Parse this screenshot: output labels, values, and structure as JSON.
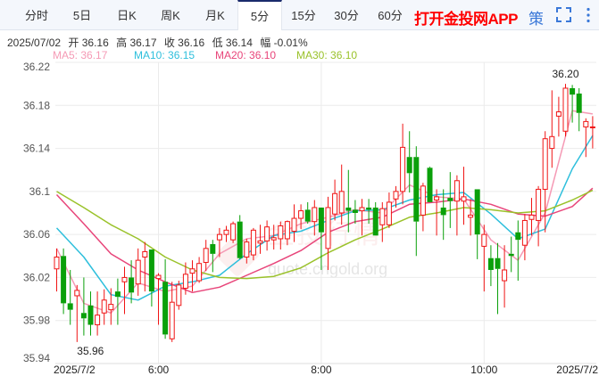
{
  "tabs": [
    {
      "label": "分时",
      "active": false
    },
    {
      "label": "5日",
      "active": false
    },
    {
      "label": "日K",
      "active": false
    },
    {
      "label": "周K",
      "active": false
    },
    {
      "label": "月K",
      "active": false
    },
    {
      "label": "5分",
      "active": true
    },
    {
      "label": "15分",
      "active": false
    },
    {
      "label": "30分",
      "active": false
    },
    {
      "label": "60分",
      "active": false
    }
  ],
  "app_link": "打开金投网APP",
  "strategy_label": "策",
  "icons": {
    "fullscreen": "fullscreen-icon",
    "more": "more-vertical-icon"
  },
  "info": {
    "date": "2025/07/02",
    "open": "开 36.16",
    "high": "高 36.17",
    "close": "收 36.16",
    "low": "低 36.14",
    "change": "幅 -0.01%"
  },
  "ma_legend": [
    {
      "label": "MA5: 36.17",
      "color": "#f59ab5"
    },
    {
      "label": "MA10: 36.15",
      "color": "#2ebfdc"
    },
    {
      "label": "MA20: 36.10",
      "color": "#e8457a"
    },
    {
      "label": "MA30: 36.10",
      "color": "#9ac22a"
    }
  ],
  "watermark": {
    "brand": "金投行情",
    "url": "quote.cngold.org"
  },
  "colors": {
    "up": "#f01414",
    "down": "#0aa00a",
    "grid": "#ebebeb"
  },
  "chart_data": {
    "type": "candlestick",
    "interval": "5分",
    "ylim": [
      35.94,
      36.22
    ],
    "yticks": [
      "36.22",
      "36.18",
      "36.14",
      "36.1",
      "36.06",
      "36.02",
      "35.98",
      "35.94"
    ],
    "xticks": [
      {
        "time": "04:45",
        "label": "2025/7/2"
      },
      {
        "time": "06:00",
        "label": "6:00"
      },
      {
        "time": "08:00",
        "label": "8:00"
      },
      {
        "time": "10:00",
        "label": "10:00"
      },
      {
        "time": "11:20",
        "label": "2025/7/2"
      }
    ],
    "grid": true,
    "annotations": [
      {
        "time": "11:00",
        "value": 36.2,
        "label": "36.20",
        "kind": "high"
      },
      {
        "time": "05:00",
        "value": 35.96,
        "label": "35.96",
        "kind": "low"
      }
    ],
    "candle_fields": [
      "time",
      "open",
      "close",
      "high",
      "low"
    ],
    "candles": [
      [
        "04:45",
        36.028,
        36.039,
        36.047,
        36.007
      ],
      [
        "04:50",
        36.04,
        35.996,
        36.047,
        35.986
      ],
      [
        "04:55",
        35.996,
        35.99,
        36.027,
        35.976
      ],
      [
        "05:00",
        36.003,
        36.008,
        36.013,
        35.96
      ],
      [
        "05:05",
        35.987,
        35.982,
        36.02,
        35.966
      ],
      [
        "05:10",
        35.994,
        35.976,
        36.007,
        35.966
      ],
      [
        "05:15",
        35.976,
        35.985,
        36.007,
        35.966
      ],
      [
        "05:20",
        35.987,
        35.999,
        36.009,
        35.976
      ],
      [
        "05:25",
        35.99,
        35.995,
        36.01,
        35.976
      ],
      [
        "05:30",
        36.007,
        36.002,
        36.019,
        35.976
      ],
      [
        "05:35",
        36.016,
        36.02,
        36.03,
        35.986
      ],
      [
        "05:40",
        36.02,
        36.006,
        36.036,
        35.996
      ],
      [
        "05:45",
        36.014,
        36.036,
        36.047,
        36.003
      ],
      [
        "05:50",
        36.039,
        36.044,
        36.053,
        36.007
      ],
      [
        "05:55",
        36.046,
        36.007,
        36.046,
        35.993
      ],
      [
        "06:00",
        36.019,
        36.022,
        36.024,
        35.976
      ],
      [
        "06:05",
        36.016,
        35.967,
        36.037,
        35.963
      ],
      [
        "06:10",
        35.963,
        35.997,
        36.016,
        35.96
      ],
      [
        "06:15",
        35.994,
        36.013,
        36.017,
        35.99
      ],
      [
        "06:20",
        36.01,
        36.023,
        36.034,
        36.004
      ],
      [
        "06:25",
        36.024,
        36.028,
        36.036,
        36.007
      ],
      [
        "06:30",
        36.017,
        36.033,
        36.039,
        36.015
      ],
      [
        "06:35",
        36.034,
        36.047,
        36.055,
        36.026
      ],
      [
        "06:40",
        36.051,
        36.042,
        36.055,
        36.025
      ],
      [
        "06:45",
        36.055,
        36.06,
        36.066,
        36.039
      ],
      [
        "06:50",
        36.06,
        36.064,
        36.068,
        36.053
      ],
      [
        "06:55",
        36.055,
        36.07,
        36.072,
        36.052
      ],
      [
        "07:00",
        36.072,
        36.038,
        36.078,
        36.037
      ],
      [
        "07:05",
        36.039,
        36.053,
        36.056,
        36.033
      ],
      [
        "07:10",
        36.041,
        36.064,
        36.066,
        36.036
      ],
      [
        "07:15",
        36.052,
        36.054,
        36.069,
        36.042
      ],
      [
        "07:20",
        36.054,
        36.067,
        36.073,
        36.045
      ],
      [
        "07:25",
        36.055,
        36.057,
        36.069,
        36.046
      ],
      [
        "07:30",
        36.056,
        36.068,
        36.072,
        36.046
      ],
      [
        "07:35",
        36.056,
        36.072,
        36.073,
        36.05
      ],
      [
        "07:40",
        36.063,
        36.075,
        36.088,
        36.053
      ],
      [
        "07:45",
        36.075,
        36.082,
        36.088,
        36.065
      ],
      [
        "07:50",
        36.083,
        36.072,
        36.09,
        36.07
      ],
      [
        "07:55",
        36.072,
        36.085,
        36.092,
        36.059
      ],
      [
        "08:00",
        36.085,
        36.062,
        36.085,
        36.027
      ],
      [
        "08:05",
        36.047,
        36.085,
        36.095,
        36.027
      ],
      [
        "08:10",
        36.079,
        36.098,
        36.111,
        36.073
      ],
      [
        "08:15",
        36.08,
        36.1,
        36.125,
        36.069
      ],
      [
        "08:20",
        36.085,
        36.082,
        36.12,
        36.062
      ],
      [
        "08:25",
        36.083,
        36.08,
        36.092,
        36.07
      ],
      [
        "08:30",
        36.082,
        36.085,
        36.093,
        36.059
      ],
      [
        "08:35",
        36.085,
        36.083,
        36.093,
        36.07
      ],
      [
        "08:40",
        36.085,
        36.059,
        36.09,
        36.059
      ],
      [
        "08:45",
        36.069,
        36.084,
        36.09,
        36.053
      ],
      [
        "08:50",
        36.069,
        36.09,
        36.099,
        36.066
      ],
      [
        "08:55",
        36.093,
        36.1,
        36.105,
        36.085
      ],
      [
        "09:00",
        36.1,
        36.141,
        36.163,
        36.088
      ],
      [
        "09:05",
        36.132,
        36.117,
        36.156,
        36.099
      ],
      [
        "09:10",
        36.132,
        36.072,
        36.142,
        36.04
      ],
      [
        "09:15",
        36.078,
        36.105,
        36.108,
        36.063
      ],
      [
        "09:20",
        36.122,
        36.09,
        36.123,
        36.09
      ],
      [
        "09:25",
        36.092,
        36.095,
        36.102,
        36.059
      ],
      [
        "09:30",
        36.085,
        36.078,
        36.102,
        36.055
      ],
      [
        "09:35",
        36.094,
        36.091,
        36.118,
        36.066
      ],
      [
        "09:40",
        36.091,
        36.11,
        36.115,
        36.059
      ],
      [
        "09:45",
        36.091,
        36.095,
        36.123,
        36.069
      ],
      [
        "09:50",
        36.076,
        36.078,
        36.093,
        36.059
      ],
      [
        "09:55",
        36.102,
        36.06,
        36.102,
        36.037
      ],
      [
        "10:00",
        36.049,
        36.06,
        36.069,
        36.007
      ],
      [
        "10:05",
        36.038,
        36.027,
        36.05,
        36.012
      ],
      [
        "10:10",
        36.038,
        36.028,
        36.052,
        35.986
      ],
      [
        "10:15",
        36.017,
        36.027,
        36.05,
        35.992
      ],
      [
        "10:20",
        36.042,
        36.04,
        36.058,
        36.025
      ],
      [
        "10:25",
        36.062,
        36.055,
        36.073,
        36.017
      ],
      [
        "10:30",
        36.05,
        36.073,
        36.079,
        36.036
      ],
      [
        "10:35",
        36.074,
        36.078,
        36.094,
        36.059
      ],
      [
        "10:40",
        36.073,
        36.102,
        36.105,
        36.049
      ],
      [
        "10:45",
        36.102,
        36.149,
        36.156,
        36.062
      ],
      [
        "10:50",
        36.14,
        36.151,
        36.194,
        36.122
      ],
      [
        "10:55",
        36.17,
        36.174,
        36.188,
        36.151
      ],
      [
        "11:00",
        36.156,
        36.196,
        36.2,
        36.151
      ],
      [
        "11:05",
        36.196,
        36.19,
        36.199,
        36.164
      ],
      [
        "11:10",
        36.191,
        36.173,
        36.196,
        36.156
      ],
      [
        "11:15",
        36.16,
        36.165,
        36.168,
        36.132
      ],
      [
        "11:20",
        36.16,
        36.16,
        36.17,
        36.14
      ]
    ],
    "ma_times": [
      "04:45",
      "05:05",
      "05:25",
      "05:45",
      "06:05",
      "06:25",
      "06:45",
      "07:05",
      "07:25",
      "07:45",
      "08:05",
      "08:25",
      "08:45",
      "09:05",
      "09:25",
      "09:45",
      "10:05",
      "10:25",
      "10:45",
      "11:05",
      "11:20"
    ],
    "series": [
      {
        "name": "MA5",
        "color": "#f59ab5",
        "values": [
          36.047,
          35.996,
          35.987,
          36.015,
          36.007,
          36.012,
          36.042,
          36.056,
          36.059,
          36.07,
          36.076,
          36.083,
          36.08,
          36.106,
          36.095,
          36.093,
          36.055,
          36.036,
          36.08,
          36.175,
          36.172
        ]
      },
      {
        "name": "MA10",
        "color": "#2ebfdc",
        "values": [
          36.066,
          36.039,
          36.004,
          35.999,
          36.012,
          36.016,
          36.022,
          36.042,
          36.059,
          36.063,
          36.073,
          36.082,
          36.083,
          36.092,
          36.097,
          36.099,
          36.079,
          36.056,
          36.065,
          36.121,
          36.152
        ]
      },
      {
        "name": "MA20",
        "color": "#e8457a",
        "values": [
          36.097,
          36.07,
          36.042,
          36.027,
          36.016,
          36.006,
          36.011,
          36.022,
          36.033,
          36.045,
          36.062,
          36.072,
          36.076,
          36.088,
          36.09,
          36.093,
          36.088,
          36.079,
          36.077,
          36.086,
          36.103
        ]
      },
      {
        "name": "MA30",
        "color": "#9ac22a",
        "values": [
          36.1,
          36.085,
          36.069,
          36.056,
          36.039,
          36.027,
          36.02,
          36.019,
          36.021,
          36.029,
          36.043,
          36.055,
          36.065,
          36.076,
          36.08,
          36.085,
          36.083,
          36.08,
          36.082,
          36.092,
          36.101
        ]
      }
    ]
  }
}
